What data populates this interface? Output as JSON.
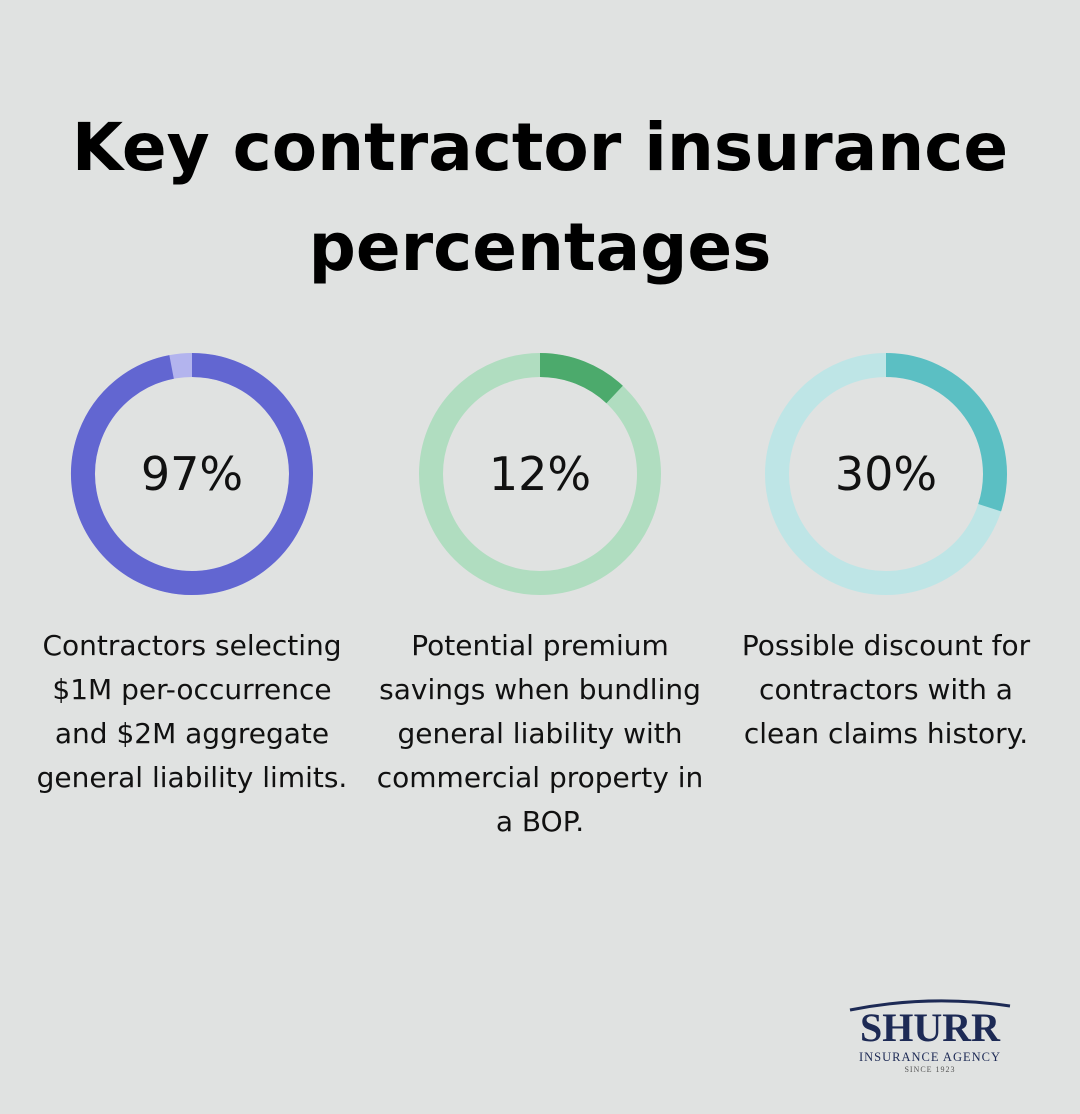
{
  "title": "Key contractor insurance percentages",
  "chart_data": [
    {
      "type": "donut",
      "values": [
        97
      ],
      "value_labels": [
        "97%"
      ],
      "color": "#6266d1",
      "track_color": "#b3b4ee",
      "description": "Contractors selecting $1M per-occurrence and $2M aggregate general liability limits."
    },
    {
      "type": "donut",
      "values": [
        12
      ],
      "value_labels": [
        "12%"
      ],
      "color": "#4caa6c",
      "track_color": "#b0ddc0",
      "description": "Potential premium savings when bundling general liability with commercial property in a BOP."
    },
    {
      "type": "donut",
      "values": [
        30
      ],
      "value_labels": [
        "30%"
      ],
      "color": "#5bbfc3",
      "track_color": "#bee5e6",
      "description": "Possible discount for contractors with a clean claims history."
    }
  ],
  "logo": {
    "name": "SHURR",
    "subtitle": "INSURANCE AGENCY",
    "since": "SINCE 1923"
  }
}
